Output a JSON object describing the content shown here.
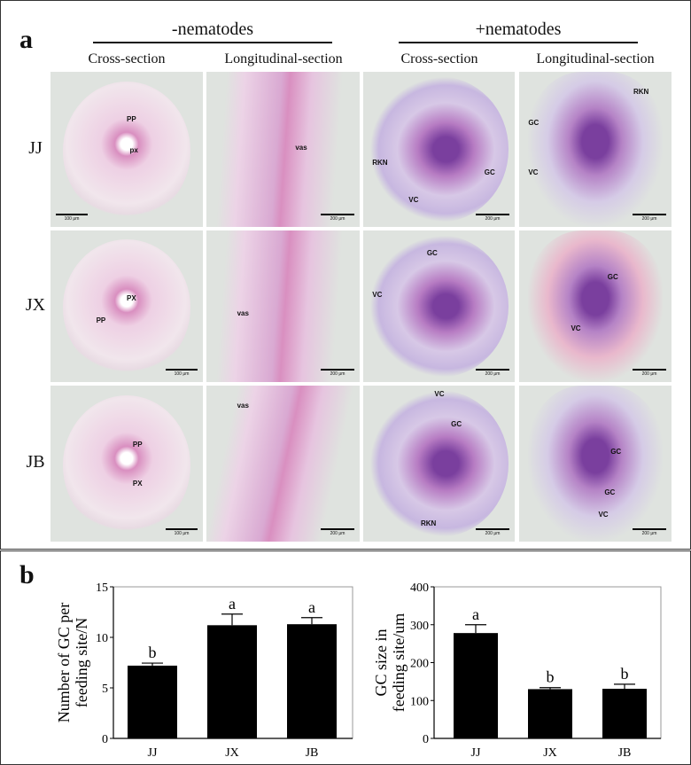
{
  "panel_a": {
    "label": "a",
    "groups": [
      "-nematodes",
      "+nematodes"
    ],
    "columns": [
      "Cross-section",
      "Longitudinal-section",
      "Cross-section",
      "Longitudinal-section"
    ],
    "rows": [
      "JJ",
      "JX",
      "JB"
    ],
    "cells": [
      {
        "labels": [
          "PP",
          "px"
        ],
        "scale": "100 μm"
      },
      {
        "labels": [
          "vas"
        ],
        "scale": "200 μm"
      },
      {
        "labels": [
          "RKN",
          "GC",
          "VC"
        ],
        "scale": "200 μm"
      },
      {
        "labels": [
          "RKN",
          "GC",
          "VC"
        ],
        "scale": "200 μm"
      },
      {
        "labels": [
          "PP",
          "PX"
        ],
        "scale": "100 μm"
      },
      {
        "labels": [
          "vas"
        ],
        "scale": "200 μm"
      },
      {
        "labels": [
          "GC",
          "VC"
        ],
        "scale": "200 μm"
      },
      {
        "labels": [
          "GC",
          "VC"
        ],
        "scale": "200 μm"
      },
      {
        "labels": [
          "PP",
          "PX"
        ],
        "scale": "100 μm"
      },
      {
        "labels": [
          "vas"
        ],
        "scale": "200 μm"
      },
      {
        "labels": [
          "VC",
          "GC",
          "RKN"
        ],
        "scale": "200 μm"
      },
      {
        "labels": [
          "GC",
          "GC",
          "VC"
        ],
        "scale": "200 μm"
      }
    ],
    "colors": {
      "pink_stain": "#d98fc0",
      "purple_stain": "#7a3f9e",
      "background": "#dfe3df"
    }
  },
  "panel_b": {
    "label": "b"
  },
  "chart_data": [
    {
      "type": "bar",
      "categories": [
        "JJ",
        "JX",
        "JB"
      ],
      "values": [
        7.2,
        11.2,
        11.3
      ],
      "error": [
        0.25,
        1.1,
        0.65
      ],
      "significance": [
        "b",
        "a",
        "a"
      ],
      "ylabel": [
        "Number of GC per",
        "feeding site/N"
      ],
      "ylim": [
        0,
        15
      ],
      "yticks": [
        "0",
        "5",
        "10",
        "15"
      ],
      "color": "#000000"
    },
    {
      "type": "bar",
      "categories": [
        "JJ",
        "JX",
        "JB"
      ],
      "values": [
        278,
        130,
        131
      ],
      "error": [
        22,
        4,
        12
      ],
      "significance": [
        "a",
        "b",
        "b"
      ],
      "ylabel": [
        "GC size in",
        "feeding site/um"
      ],
      "ylim": [
        0,
        400
      ],
      "yticks": [
        "0",
        "100",
        "200",
        "300",
        "400"
      ],
      "color": "#000000"
    }
  ]
}
